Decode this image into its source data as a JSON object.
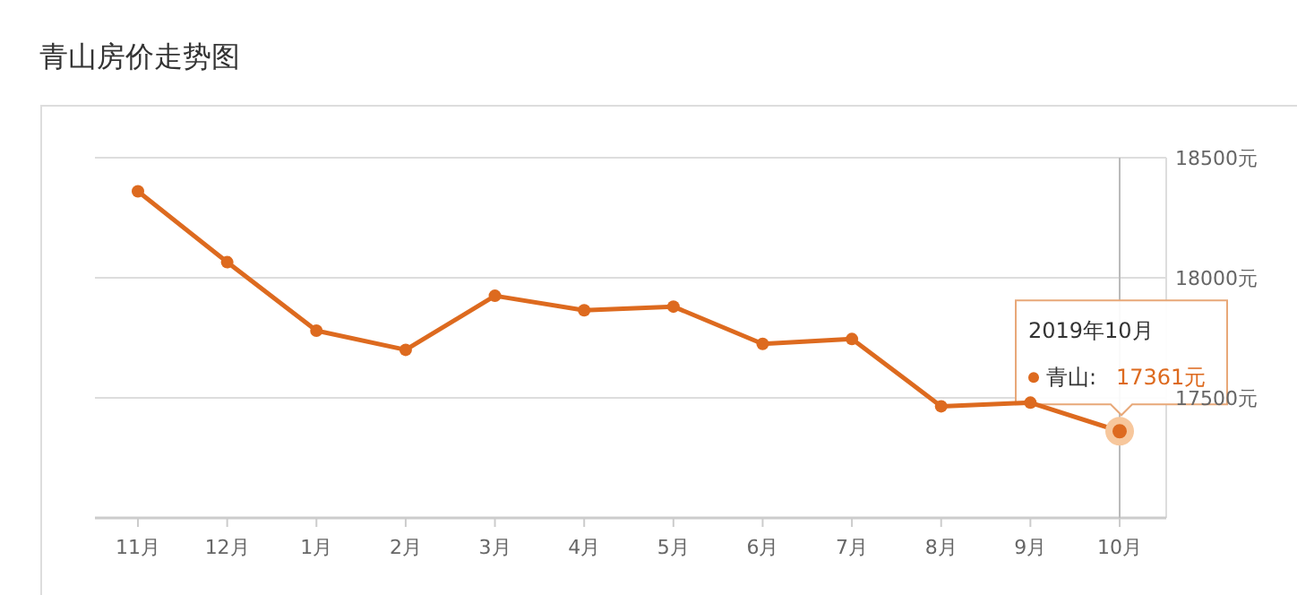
{
  "chart_data": {
    "type": "line",
    "title": "青山房价走势图",
    "categories": [
      "11月",
      "12月",
      "1月",
      "2月",
      "3月",
      "4月",
      "5月",
      "6月",
      "7月",
      "8月",
      "9月",
      "10月"
    ],
    "series": [
      {
        "name": "青山:",
        "color": "#dd6a1f",
        "values": [
          18360,
          18065,
          17780,
          17700,
          17925,
          17865,
          17880,
          17725,
          17745,
          17465,
          17480,
          17361
        ],
        "value_labels": [
          null,
          null,
          null,
          null,
          null,
          null,
          null,
          null,
          null,
          null,
          null,
          "17361元"
        ]
      }
    ],
    "ylim": [
      17000,
      18500
    ],
    "yticks": [
      {
        "value": 17000,
        "label": null
      },
      {
        "value": 17500,
        "label": "17500元"
      },
      {
        "value": 18000,
        "label": "18000元"
      },
      {
        "value": 18500,
        "label": "18500元"
      }
    ],
    "grid": "y",
    "legend": "right",
    "marker": "circle",
    "line_style": "solid",
    "ref_lines": [
      {
        "axis": "x",
        "value": "10月",
        "color": "#bbbbbb"
      }
    ],
    "annotations": [
      "2019年10月"
    ]
  }
}
